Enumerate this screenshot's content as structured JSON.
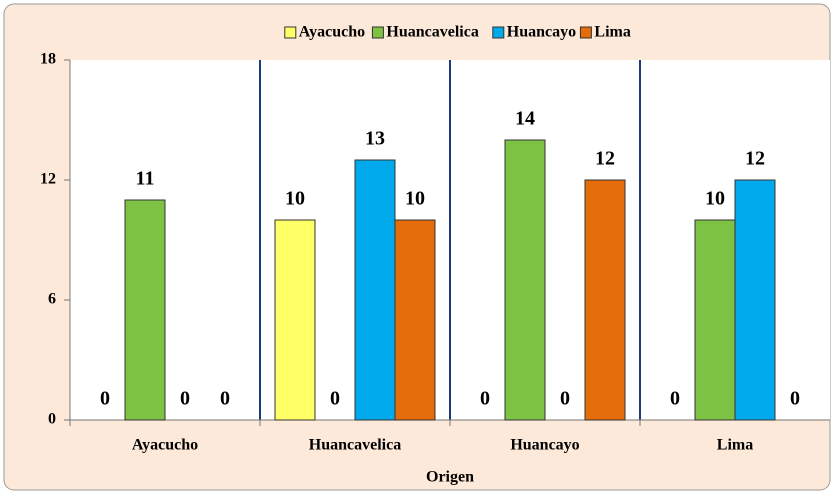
{
  "chart_data": {
    "type": "bar",
    "categories": [
      "Ayacucho",
      "Huancavelica",
      "Huancayo",
      "Lima"
    ],
    "series": [
      {
        "name": "Ayacucho",
        "color": "#ffff66",
        "values": [
          0,
          10,
          0,
          0
        ]
      },
      {
        "name": "Huancavelica",
        "color": "#7dc242",
        "values": [
          11,
          0,
          14,
          10
        ]
      },
      {
        "name": "Huancayo",
        "color": "#00a9ec",
        "values": [
          0,
          13,
          0,
          12
        ]
      },
      {
        "name": "Lima",
        "color": "#e46c0a",
        "values": [
          0,
          10,
          12,
          0
        ]
      }
    ],
    "x_label": "Origen",
    "ylim": [
      0,
      18
    ],
    "yticks": [
      0,
      6,
      12,
      18
    ],
    "legend": "top"
  }
}
